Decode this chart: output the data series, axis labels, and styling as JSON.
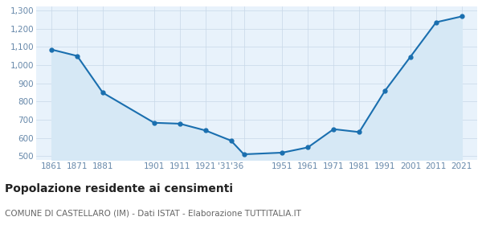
{
  "years": [
    1861,
    1871,
    1881,
    1901,
    1911,
    1921,
    1931,
    1936,
    1951,
    1961,
    1971,
    1981,
    1991,
    2001,
    2011,
    2021
  ],
  "population": [
    1085,
    1050,
    848,
    683,
    678,
    641,
    585,
    510,
    519,
    548,
    648,
    632,
    858,
    1046,
    1235,
    1267
  ],
  "line_color": "#1a6faf",
  "fill_color": "#d6e8f5",
  "marker_color": "#1a6faf",
  "background_color": "#ffffff",
  "grid_color": "#c8d8e8",
  "plot_bg_color": "#e8f2fb",
  "title": "Popolazione residente ai censimenti",
  "subtitle": "COMUNE DI CASTELLARO (IM) - Dati ISTAT - Elaborazione TUTTITALIA.IT",
  "title_fontsize": 10,
  "subtitle_fontsize": 7.5,
  "ylim": [
    480,
    1320
  ],
  "yticks": [
    500,
    600,
    700,
    800,
    900,
    1000,
    1100,
    1200,
    1300
  ],
  "tick_label_color": "#6688aa",
  "x_tick_labels": [
    "1861",
    "1871",
    "1881",
    "",
    "1901",
    "1911",
    "1921",
    "’31’36",
    "",
    "1951",
    "1961",
    "1971",
    "1981",
    "1991",
    "2001",
    "2011",
    "2021"
  ]
}
